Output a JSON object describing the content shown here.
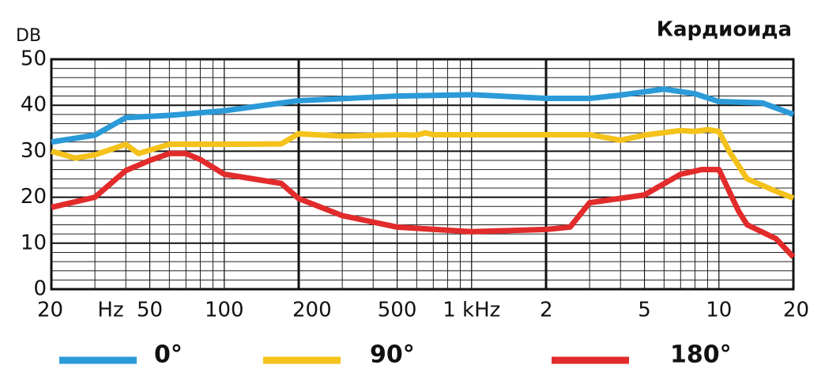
{
  "chart_data": {
    "type": "line",
    "title": "Кардиоида",
    "ylabel": "DB",
    "xunit": "Hz",
    "xscale": "log",
    "grid": true,
    "legend": "bottom",
    "xlim": [
      20,
      20000
    ],
    "ylim": [
      0,
      50
    ],
    "xticks": [
      20,
      50,
      100,
      200,
      500,
      {
        "value": 1000,
        "label": "1 kHz"
      },
      {
        "value": 2000,
        "label": "2"
      },
      {
        "value": 5000,
        "label": "5"
      },
      {
        "value": 10000,
        "label": "10"
      },
      {
        "value": 20000,
        "label": "20"
      }
    ],
    "yticks": [
      0,
      10,
      20,
      30,
      40,
      50
    ],
    "series": [
      {
        "name": "0°",
        "color": "#2b9ad8",
        "x": [
          20,
          30,
          40,
          60,
          100,
          200,
          500,
          1000,
          2000,
          3000,
          4000,
          6000,
          8000,
          10000,
          15000,
          20000
        ],
        "values": [
          32,
          33.5,
          37.3,
          37.8,
          38.8,
          41,
          42,
          42.3,
          41.5,
          41.5,
          42.2,
          43.5,
          42.5,
          40.8,
          40.5,
          38
        ]
      },
      {
        "name": "90°",
        "color": "#f4c21b",
        "x": [
          20,
          25,
          30,
          40,
          45,
          60,
          100,
          170,
          200,
          300,
          500,
          600,
          650,
          700,
          1000,
          3000,
          4000,
          5000,
          7000,
          8000,
          9000,
          10000,
          11000,
          13000,
          17000,
          20000
        ],
        "values": [
          30,
          28.5,
          29.2,
          31.5,
          29.5,
          31.5,
          31.5,
          31.6,
          33.8,
          33.3,
          33.6,
          33.5,
          34,
          33.6,
          33.6,
          33.6,
          32.4,
          33.5,
          34.5,
          34.3,
          34.7,
          34.3,
          30,
          24,
          21.3,
          19.8
        ]
      },
      {
        "name": "180°",
        "color": "#e22b2b",
        "x": [
          20,
          30,
          40,
          50,
          60,
          70,
          80,
          100,
          170,
          200,
          300,
          500,
          1000,
          2000,
          2500,
          3000,
          5000,
          7000,
          8500,
          10000,
          12000,
          13000,
          17000,
          20000
        ],
        "values": [
          17.8,
          20,
          25.8,
          28,
          29.5,
          29.5,
          28.2,
          25,
          23,
          19.7,
          16,
          13.5,
          12.5,
          13,
          13.5,
          18.8,
          20.5,
          25,
          26,
          26,
          17,
          14,
          11,
          7
        ]
      }
    ]
  }
}
